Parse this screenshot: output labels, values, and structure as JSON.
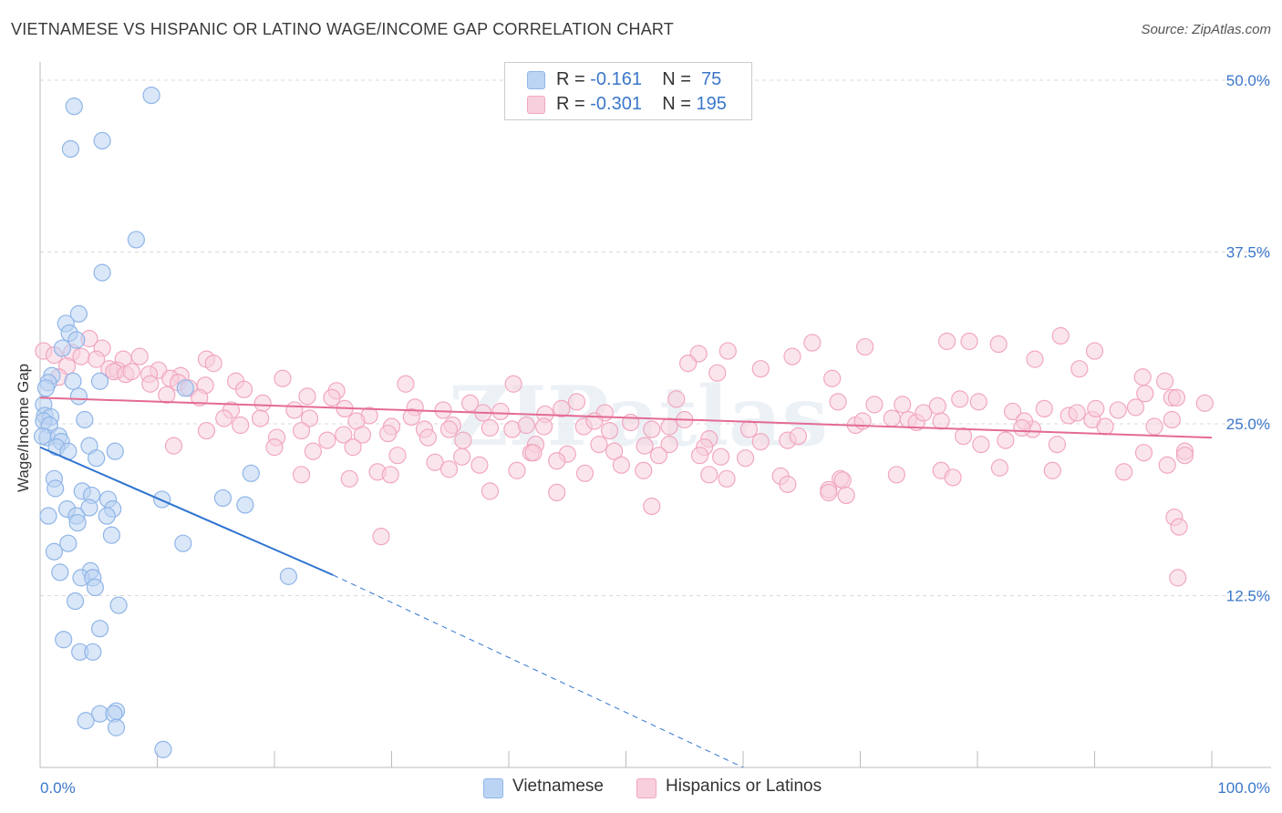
{
  "header": {
    "title": "VIETNAMESE VS HISPANIC OR LATINO WAGE/INCOME GAP CORRELATION CHART",
    "source": "Source: ZipAtlas.com"
  },
  "colors": {
    "blue": "#8fb5e8",
    "blue_fill": "#bcd4f3",
    "blue_line": "#2f74d0",
    "pink": "#f1a7c0",
    "pink_fill": "#f8cfdc",
    "pink_line": "#e46b93",
    "axis_text": "#3b77c9",
    "grid": "#d9d9d9"
  },
  "legend_top": {
    "rows": [
      {
        "r_label": "R = ",
        "r_value": "-0.161",
        "n_label": "N = ",
        "n_value": "75"
      },
      {
        "r_label": "R = ",
        "r_value": "-0.301",
        "n_label": "N = ",
        "n_value": "195"
      }
    ]
  },
  "legend_bottom": {
    "items": [
      {
        "label": "Vietnamese"
      },
      {
        "label": "Hispanics or Latinos"
      }
    ]
  },
  "chart_data": {
    "type": "scatter",
    "title": "VIETNAMESE VS HISPANIC OR LATINO WAGE/INCOME GAP CORRELATION CHART",
    "xlabel": "",
    "ylabel": "Wage/Income Gap",
    "xlim": [
      0,
      100
    ],
    "ylim": [
      0,
      50
    ],
    "x_tick_labels": [
      "0.0%",
      "100.0%"
    ],
    "y_ticks": [
      12.5,
      25.0,
      37.5,
      50.0
    ],
    "y_tick_labels": [
      "12.5%",
      "25.0%",
      "37.5%",
      "50.0%"
    ],
    "grid": true,
    "legend_position": "bottom",
    "watermark": "ZIPatlas",
    "series": [
      {
        "name": "Vietnamese",
        "r": -0.161,
        "n": 75,
        "trend": {
          "x": [
            0,
            25
          ],
          "y": [
            23.3,
            14.0
          ],
          "dashed_to": [
            60,
            0
          ]
        },
        "points": [
          [
            2.9,
            48.1
          ],
          [
            9.5,
            48.9
          ],
          [
            2.6,
            45.0
          ],
          [
            5.3,
            45.6
          ],
          [
            8.2,
            38.4
          ],
          [
            5.3,
            36.0
          ],
          [
            3.3,
            33.0
          ],
          [
            2.2,
            32.3
          ],
          [
            2.5,
            31.6
          ],
          [
            3.1,
            31.1
          ],
          [
            1.9,
            30.5
          ],
          [
            1.0,
            28.5
          ],
          [
            0.7,
            28.0
          ],
          [
            0.5,
            27.6
          ],
          [
            2.8,
            28.1
          ],
          [
            5.1,
            28.1
          ],
          [
            3.3,
            27.0
          ],
          [
            12.4,
            27.6
          ],
          [
            0.3,
            26.4
          ],
          [
            0.4,
            25.6
          ],
          [
            0.9,
            25.5
          ],
          [
            0.3,
            25.2
          ],
          [
            3.8,
            25.3
          ],
          [
            0.8,
            24.9
          ],
          [
            0.6,
            24.0
          ],
          [
            0.2,
            24.1
          ],
          [
            1.6,
            24.1
          ],
          [
            1.8,
            23.7
          ],
          [
            1.4,
            23.3
          ],
          [
            4.2,
            23.4
          ],
          [
            2.4,
            23.0
          ],
          [
            6.4,
            23.0
          ],
          [
            4.8,
            22.5
          ],
          [
            1.2,
            21.0
          ],
          [
            18.0,
            21.4
          ],
          [
            1.3,
            20.3
          ],
          [
            3.6,
            20.1
          ],
          [
            4.4,
            19.8
          ],
          [
            10.4,
            19.5
          ],
          [
            15.6,
            19.6
          ],
          [
            5.8,
            19.5
          ],
          [
            17.5,
            19.1
          ],
          [
            2.3,
            18.8
          ],
          [
            4.2,
            18.9
          ],
          [
            6.2,
            18.8
          ],
          [
            0.7,
            18.3
          ],
          [
            3.1,
            18.3
          ],
          [
            5.7,
            18.3
          ],
          [
            3.2,
            17.8
          ],
          [
            6.1,
            16.9
          ],
          [
            2.4,
            16.3
          ],
          [
            12.2,
            16.3
          ],
          [
            1.2,
            15.7
          ],
          [
            1.7,
            14.2
          ],
          [
            4.3,
            14.3
          ],
          [
            3.5,
            13.8
          ],
          [
            4.5,
            13.8
          ],
          [
            21.2,
            13.9
          ],
          [
            4.7,
            13.1
          ],
          [
            3.0,
            12.1
          ],
          [
            6.7,
            11.8
          ],
          [
            5.1,
            10.1
          ],
          [
            2.0,
            9.3
          ],
          [
            3.4,
            8.4
          ],
          [
            4.5,
            8.4
          ],
          [
            6.5,
            4.1
          ],
          [
            5.1,
            3.9
          ],
          [
            6.3,
            3.9
          ],
          [
            3.9,
            3.4
          ],
          [
            6.5,
            2.9
          ],
          [
            10.5,
            1.3
          ]
        ]
      },
      {
        "name": "Hispanics or Latinos",
        "r": -0.301,
        "n": 195,
        "trend": {
          "x": [
            0,
            100
          ],
          "y": [
            26.9,
            24.0
          ]
        },
        "points": [
          [
            0.3,
            30.3
          ],
          [
            1.2,
            30.0
          ],
          [
            2.7,
            30.2
          ],
          [
            4.2,
            31.2
          ],
          [
            5.3,
            30.5
          ],
          [
            3.5,
            29.9
          ],
          [
            7.1,
            29.7
          ],
          [
            8.5,
            29.9
          ],
          [
            4.8,
            29.7
          ],
          [
            14.2,
            29.7
          ],
          [
            14.8,
            29.4
          ],
          [
            2.3,
            29.2
          ],
          [
            5.9,
            29.0
          ],
          [
            6.6,
            28.9
          ],
          [
            10.1,
            28.9
          ],
          [
            6.3,
            28.8
          ],
          [
            7.3,
            28.6
          ],
          [
            7.8,
            28.8
          ],
          [
            9.3,
            28.6
          ],
          [
            1.6,
            28.4
          ],
          [
            12.0,
            28.5
          ],
          [
            11.1,
            28.3
          ],
          [
            20.7,
            28.3
          ],
          [
            16.7,
            28.1
          ],
          [
            11.8,
            28.0
          ],
          [
            9.4,
            27.9
          ],
          [
            14.1,
            27.8
          ],
          [
            12.7,
            27.6
          ],
          [
            25.3,
            27.4
          ],
          [
            31.2,
            27.9
          ],
          [
            40.4,
            27.9
          ],
          [
            17.4,
            27.5
          ],
          [
            22.8,
            27.0
          ],
          [
            10.8,
            27.1
          ],
          [
            13.6,
            26.9
          ],
          [
            24.9,
            26.9
          ],
          [
            19.0,
            26.5
          ],
          [
            36.7,
            26.5
          ],
          [
            32.0,
            26.2
          ],
          [
            26.0,
            26.1
          ],
          [
            16.3,
            26.0
          ],
          [
            21.7,
            26.0
          ],
          [
            34.4,
            26.0
          ],
          [
            28.1,
            25.6
          ],
          [
            37.8,
            25.8
          ],
          [
            39.3,
            25.9
          ],
          [
            43.1,
            25.7
          ],
          [
            45.8,
            26.6
          ],
          [
            44.5,
            26.1
          ],
          [
            48.2,
            25.8
          ],
          [
            15.7,
            25.4
          ],
          [
            18.8,
            25.4
          ],
          [
            23.0,
            25.4
          ],
          [
            31.7,
            25.5
          ],
          [
            35.2,
            24.9
          ],
          [
            27.0,
            25.2
          ],
          [
            30.0,
            24.8
          ],
          [
            32.8,
            24.6
          ],
          [
            34.9,
            24.6
          ],
          [
            25.9,
            24.2
          ],
          [
            14.2,
            24.5
          ],
          [
            17.1,
            24.9
          ],
          [
            22.3,
            24.5
          ],
          [
            29.7,
            24.3
          ],
          [
            38.4,
            24.7
          ],
          [
            40.3,
            24.6
          ],
          [
            41.5,
            24.9
          ],
          [
            43.0,
            24.8
          ],
          [
            46.4,
            24.8
          ],
          [
            47.3,
            25.2
          ],
          [
            50.4,
            25.1
          ],
          [
            52.2,
            24.6
          ],
          [
            55.0,
            25.3
          ],
          [
            20.2,
            24.0
          ],
          [
            24.5,
            23.8
          ],
          [
            27.5,
            24.2
          ],
          [
            33.1,
            24.0
          ],
          [
            36.1,
            23.8
          ],
          [
            42.3,
            23.5
          ],
          [
            47.7,
            23.5
          ],
          [
            51.6,
            23.4
          ],
          [
            53.7,
            23.5
          ],
          [
            57.1,
            23.9
          ],
          [
            60.5,
            24.6
          ],
          [
            11.4,
            23.4
          ],
          [
            20.0,
            23.3
          ],
          [
            23.3,
            23.0
          ],
          [
            26.7,
            23.3
          ],
          [
            30.5,
            22.7
          ],
          [
            36.0,
            22.6
          ],
          [
            41.9,
            22.9
          ],
          [
            45.0,
            22.8
          ],
          [
            49.0,
            23.0
          ],
          [
            52.8,
            22.7
          ],
          [
            56.7,
            23.3
          ],
          [
            60.2,
            22.5
          ],
          [
            33.7,
            22.2
          ],
          [
            37.5,
            22.0
          ],
          [
            44.1,
            22.3
          ],
          [
            49.6,
            22.0
          ],
          [
            28.8,
            21.5
          ],
          [
            34.9,
            21.7
          ],
          [
            40.7,
            21.6
          ],
          [
            46.5,
            21.4
          ],
          [
            51.5,
            21.6
          ],
          [
            57.1,
            21.3
          ],
          [
            58.6,
            21.0
          ],
          [
            63.2,
            21.2
          ],
          [
            68.3,
            21.0
          ],
          [
            68.5,
            20.9
          ],
          [
            73.1,
            21.3
          ],
          [
            76.9,
            21.6
          ],
          [
            77.9,
            21.1
          ],
          [
            81.9,
            21.8
          ],
          [
            86.4,
            21.6
          ],
          [
            92.5,
            21.5
          ],
          [
            22.3,
            21.3
          ],
          [
            26.4,
            21.0
          ],
          [
            38.4,
            20.1
          ],
          [
            44.1,
            20.0
          ],
          [
            52.2,
            19.0
          ],
          [
            63.8,
            20.6
          ],
          [
            67.3,
            20.2
          ],
          [
            68.8,
            19.8
          ],
          [
            42.1,
            22.9
          ],
          [
            29.9,
            21.3
          ],
          [
            58.1,
            22.6
          ],
          [
            48.6,
            24.5
          ],
          [
            56.3,
            22.7
          ],
          [
            61.5,
            23.7
          ],
          [
            63.8,
            23.8
          ],
          [
            69.6,
            24.9
          ],
          [
            64.7,
            24.1
          ],
          [
            70.2,
            25.2
          ],
          [
            72.7,
            25.4
          ],
          [
            74.1,
            25.3
          ],
          [
            74.8,
            25.1
          ],
          [
            76.9,
            25.2
          ],
          [
            78.8,
            24.1
          ],
          [
            80.3,
            23.5
          ],
          [
            82.4,
            23.8
          ],
          [
            84.7,
            24.6
          ],
          [
            86.8,
            23.5
          ],
          [
            89.8,
            25.3
          ],
          [
            90.9,
            24.8
          ],
          [
            95.1,
            24.8
          ],
          [
            96.6,
            25.3
          ],
          [
            97.7,
            23.0
          ],
          [
            99.4,
            26.5
          ],
          [
            71.2,
            26.4
          ],
          [
            73.6,
            26.4
          ],
          [
            75.4,
            25.8
          ],
          [
            76.6,
            26.3
          ],
          [
            80.1,
            26.6
          ],
          [
            83.0,
            25.9
          ],
          [
            84.0,
            25.2
          ],
          [
            85.7,
            26.1
          ],
          [
            87.8,
            25.6
          ],
          [
            88.5,
            25.8
          ],
          [
            90.1,
            26.1
          ],
          [
            92.0,
            26.0
          ],
          [
            93.5,
            26.2
          ],
          [
            94.3,
            27.2
          ],
          [
            96.0,
            28.1
          ],
          [
            96.6,
            26.9
          ],
          [
            97.0,
            26.9
          ],
          [
            57.8,
            28.7
          ],
          [
            61.5,
            29.0
          ],
          [
            64.2,
            29.9
          ],
          [
            65.9,
            30.9
          ],
          [
            70.4,
            30.6
          ],
          [
            77.4,
            31.0
          ],
          [
            79.3,
            31.0
          ],
          [
            81.8,
            30.8
          ],
          [
            84.9,
            29.7
          ],
          [
            87.1,
            31.4
          ],
          [
            88.7,
            29.0
          ],
          [
            90.0,
            30.3
          ],
          [
            94.1,
            28.4
          ],
          [
            56.2,
            30.1
          ],
          [
            58.7,
            30.3
          ],
          [
            55.3,
            29.4
          ],
          [
            67.6,
            28.3
          ],
          [
            68.1,
            26.6
          ],
          [
            54.3,
            26.8
          ],
          [
            53.7,
            24.8
          ],
          [
            96.2,
            22.0
          ],
          [
            96.8,
            18.2
          ],
          [
            97.2,
            17.5
          ],
          [
            97.1,
            13.8
          ],
          [
            97.7,
            22.7
          ],
          [
            94.2,
            22.9
          ],
          [
            29.1,
            16.8
          ],
          [
            78.5,
            26.8
          ],
          [
            83.8,
            24.7
          ],
          [
            67.3,
            20.0
          ]
        ]
      }
    ]
  }
}
